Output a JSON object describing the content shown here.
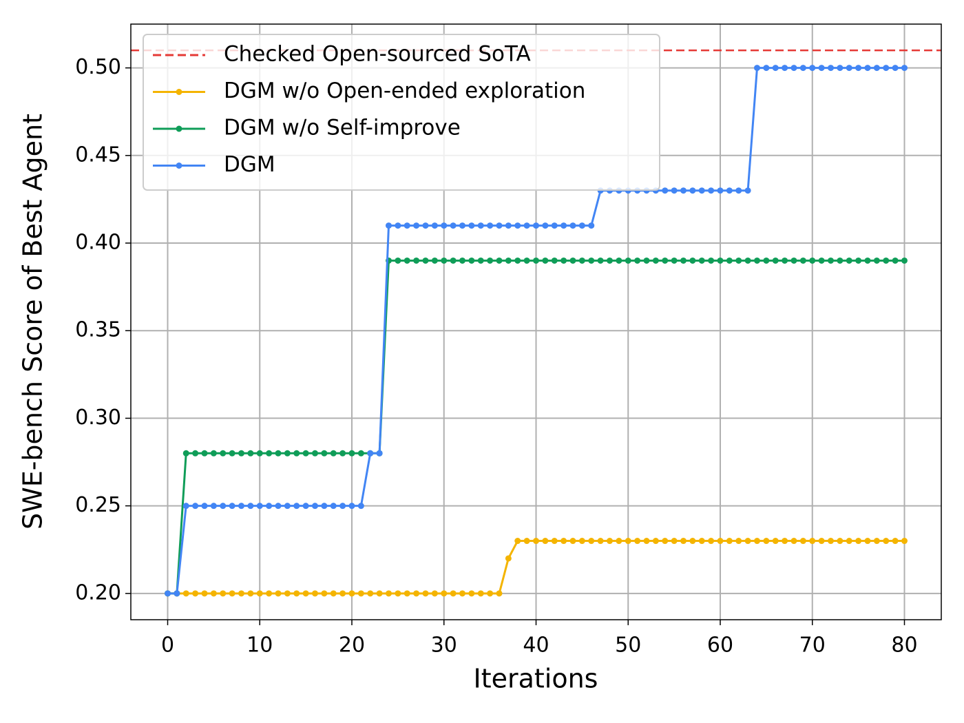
{
  "chart_data": {
    "type": "line",
    "xlabel": "Iterations",
    "ylabel": "SWE-bench Score of Best Agent",
    "x": [
      0,
      1,
      2,
      3,
      4,
      5,
      6,
      7,
      8,
      9,
      10,
      11,
      12,
      13,
      14,
      15,
      16,
      17,
      18,
      19,
      20,
      21,
      22,
      23,
      24,
      25,
      26,
      27,
      28,
      29,
      30,
      31,
      32,
      33,
      34,
      35,
      36,
      37,
      38,
      39,
      40,
      41,
      42,
      43,
      44,
      45,
      46,
      47,
      48,
      49,
      50,
      51,
      52,
      53,
      54,
      55,
      56,
      57,
      58,
      59,
      60,
      61,
      62,
      63,
      64,
      65,
      66,
      67,
      68,
      69,
      70,
      71,
      72,
      73,
      74,
      75,
      76,
      77,
      78,
      79,
      80
    ],
    "series": [
      {
        "name": "DGM w/o Open-ended exploration",
        "color": "#f4b400",
        "values": [
          0.2,
          0.2,
          0.2,
          0.2,
          0.2,
          0.2,
          0.2,
          0.2,
          0.2,
          0.2,
          0.2,
          0.2,
          0.2,
          0.2,
          0.2,
          0.2,
          0.2,
          0.2,
          0.2,
          0.2,
          0.2,
          0.2,
          0.2,
          0.2,
          0.2,
          0.2,
          0.2,
          0.2,
          0.2,
          0.2,
          0.2,
          0.2,
          0.2,
          0.2,
          0.2,
          0.2,
          0.2,
          0.22,
          0.23,
          0.23,
          0.23,
          0.23,
          0.23,
          0.23,
          0.23,
          0.23,
          0.23,
          0.23,
          0.23,
          0.23,
          0.23,
          0.23,
          0.23,
          0.23,
          0.23,
          0.23,
          0.23,
          0.23,
          0.23,
          0.23,
          0.23,
          0.23,
          0.23,
          0.23,
          0.23,
          0.23,
          0.23,
          0.23,
          0.23,
          0.23,
          0.23,
          0.23,
          0.23,
          0.23,
          0.23,
          0.23,
          0.23,
          0.23,
          0.23,
          0.23,
          0.23
        ]
      },
      {
        "name": "DGM w/o Self-improve",
        "color": "#0f9d58",
        "values": [
          0.2,
          0.2,
          0.28,
          0.28,
          0.28,
          0.28,
          0.28,
          0.28,
          0.28,
          0.28,
          0.28,
          0.28,
          0.28,
          0.28,
          0.28,
          0.28,
          0.28,
          0.28,
          0.28,
          0.28,
          0.28,
          0.28,
          0.28,
          0.28,
          0.39,
          0.39,
          0.39,
          0.39,
          0.39,
          0.39,
          0.39,
          0.39,
          0.39,
          0.39,
          0.39,
          0.39,
          0.39,
          0.39,
          0.39,
          0.39,
          0.39,
          0.39,
          0.39,
          0.39,
          0.39,
          0.39,
          0.39,
          0.39,
          0.39,
          0.39,
          0.39,
          0.39,
          0.39,
          0.39,
          0.39,
          0.39,
          0.39,
          0.39,
          0.39,
          0.39,
          0.39,
          0.39,
          0.39,
          0.39,
          0.39,
          0.39,
          0.39,
          0.39,
          0.39,
          0.39,
          0.39,
          0.39,
          0.39,
          0.39,
          0.39,
          0.39,
          0.39,
          0.39,
          0.39,
          0.39,
          0.39
        ]
      },
      {
        "name": "DGM",
        "color": "#4285f4",
        "values": [
          0.2,
          0.2,
          0.25,
          0.25,
          0.25,
          0.25,
          0.25,
          0.25,
          0.25,
          0.25,
          0.25,
          0.25,
          0.25,
          0.25,
          0.25,
          0.25,
          0.25,
          0.25,
          0.25,
          0.25,
          0.25,
          0.25,
          0.28,
          0.28,
          0.41,
          0.41,
          0.41,
          0.41,
          0.41,
          0.41,
          0.41,
          0.41,
          0.41,
          0.41,
          0.41,
          0.41,
          0.41,
          0.41,
          0.41,
          0.41,
          0.41,
          0.41,
          0.41,
          0.41,
          0.41,
          0.41,
          0.41,
          0.43,
          0.43,
          0.43,
          0.43,
          0.43,
          0.43,
          0.43,
          0.43,
          0.43,
          0.43,
          0.43,
          0.43,
          0.43,
          0.43,
          0.43,
          0.43,
          0.43,
          0.5,
          0.5,
          0.5,
          0.5,
          0.5,
          0.5,
          0.5,
          0.5,
          0.5,
          0.5,
          0.5,
          0.5,
          0.5,
          0.5,
          0.5,
          0.5,
          0.5
        ]
      }
    ],
    "reference_lines": [
      {
        "name": "Checked Open-sourced SoTA",
        "value": 0.51,
        "color": "#e53935",
        "style": "dashed"
      }
    ],
    "xlim": [
      -4,
      84
    ],
    "ylim": [
      0.185,
      0.525
    ],
    "xticks": [
      0,
      10,
      20,
      30,
      40,
      50,
      60,
      70,
      80
    ],
    "yticks": [
      {
        "value": 0.2,
        "label": "0.20"
      },
      {
        "value": 0.25,
        "label": "0.25"
      },
      {
        "value": 0.3,
        "label": "0.30"
      },
      {
        "value": 0.35,
        "label": "0.35"
      },
      {
        "value": 0.4,
        "label": "0.40"
      },
      {
        "value": 0.45,
        "label": "0.45"
      },
      {
        "value": 0.5,
        "label": "0.50"
      }
    ],
    "grid": true,
    "legend": "upper left"
  }
}
